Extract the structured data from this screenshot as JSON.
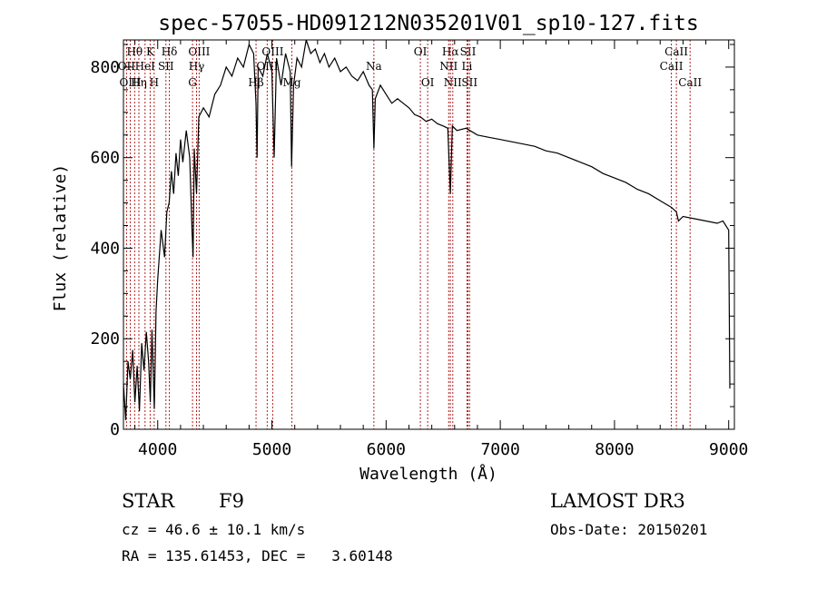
{
  "chart_data": {
    "type": "line",
    "title": "spec-57055-HD091212N035201V01_sp10-127.fits",
    "xlabel": "Wavelength (Å)",
    "ylabel": "Flux (relative)",
    "xlim": [
      3700,
      9050
    ],
    "ylim": [
      0,
      860
    ],
    "xticks": [
      4000,
      5000,
      6000,
      7000,
      8000,
      9000
    ],
    "yticks": [
      0,
      200,
      400,
      600,
      800
    ],
    "grid": false,
    "series": [
      {
        "name": "spectrum",
        "points": [
          [
            3700,
            100
          ],
          [
            3720,
            20
          ],
          [
            3740,
            150
          ],
          [
            3760,
            110
          ],
          [
            3780,
            175
          ],
          [
            3800,
            60
          ],
          [
            3820,
            140
          ],
          [
            3840,
            40
          ],
          [
            3860,
            190
          ],
          [
            3880,
            130
          ],
          [
            3900,
            215
          ],
          [
            3920,
            150
          ],
          [
            3935,
            60
          ],
          [
            3950,
            220
          ],
          [
            3970,
            45
          ],
          [
            3985,
            260
          ],
          [
            4000,
            330
          ],
          [
            4030,
            440
          ],
          [
            4060,
            380
          ],
          [
            4080,
            480
          ],
          [
            4100,
            500
          ],
          [
            4120,
            570
          ],
          [
            4140,
            520
          ],
          [
            4160,
            610
          ],
          [
            4180,
            560
          ],
          [
            4200,
            640
          ],
          [
            4220,
            590
          ],
          [
            4250,
            660
          ],
          [
            4280,
            600
          ],
          [
            4300,
            440
          ],
          [
            4310,
            380
          ],
          [
            4320,
            620
          ],
          [
            4340,
            520
          ],
          [
            4360,
            690
          ],
          [
            4400,
            710
          ],
          [
            4450,
            690
          ],
          [
            4500,
            740
          ],
          [
            4550,
            760
          ],
          [
            4600,
            800
          ],
          [
            4650,
            780
          ],
          [
            4700,
            820
          ],
          [
            4750,
            800
          ],
          [
            4800,
            850
          ],
          [
            4840,
            830
          ],
          [
            4861,
            720
          ],
          [
            4870,
            600
          ],
          [
            4880,
            800
          ],
          [
            4920,
            780
          ],
          [
            4960,
            830
          ],
          [
            5000,
            790
          ],
          [
            5020,
            600
          ],
          [
            5040,
            820
          ],
          [
            5080,
            760
          ],
          [
            5120,
            830
          ],
          [
            5160,
            790
          ],
          [
            5172,
            580
          ],
          [
            5190,
            760
          ],
          [
            5220,
            820
          ],
          [
            5260,
            800
          ],
          [
            5300,
            860
          ],
          [
            5340,
            830
          ],
          [
            5380,
            840
          ],
          [
            5420,
            810
          ],
          [
            5460,
            830
          ],
          [
            5500,
            800
          ],
          [
            5550,
            820
          ],
          [
            5600,
            790
          ],
          [
            5650,
            800
          ],
          [
            5700,
            780
          ],
          [
            5750,
            770
          ],
          [
            5800,
            790
          ],
          [
            5850,
            760
          ],
          [
            5880,
            750
          ],
          [
            5893,
            620
          ],
          [
            5905,
            730
          ],
          [
            5950,
            760
          ],
          [
            6000,
            740
          ],
          [
            6050,
            720
          ],
          [
            6100,
            730
          ],
          [
            6150,
            720
          ],
          [
            6200,
            710
          ],
          [
            6250,
            695
          ],
          [
            6300,
            690
          ],
          [
            6350,
            680
          ],
          [
            6400,
            685
          ],
          [
            6450,
            675
          ],
          [
            6500,
            670
          ],
          [
            6540,
            665
          ],
          [
            6563,
            520
          ],
          [
            6580,
            670
          ],
          [
            6620,
            660
          ],
          [
            6700,
            665
          ],
          [
            6800,
            650
          ],
          [
            6900,
            645
          ],
          [
            7000,
            640
          ],
          [
            7100,
            635
          ],
          [
            7200,
            630
          ],
          [
            7300,
            625
          ],
          [
            7400,
            615
          ],
          [
            7500,
            610
          ],
          [
            7600,
            600
          ],
          [
            7700,
            590
          ],
          [
            7800,
            580
          ],
          [
            7900,
            565
          ],
          [
            8000,
            555
          ],
          [
            8100,
            545
          ],
          [
            8200,
            530
          ],
          [
            8300,
            520
          ],
          [
            8400,
            505
          ],
          [
            8500,
            490
          ],
          [
            8542,
            480
          ],
          [
            8560,
            460
          ],
          [
            8600,
            470
          ],
          [
            8700,
            465
          ],
          [
            8800,
            460
          ],
          [
            8900,
            455
          ],
          [
            8950,
            460
          ],
          [
            9000,
            440
          ],
          [
            9010,
            90
          ]
        ]
      }
    ],
    "line_markers": [
      {
        "label": "Hθ",
        "wavelength": 3798,
        "row": 1
      },
      {
        "label": "OII",
        "wavelength": 3727,
        "row": 2
      },
      {
        "label": "OIII",
        "wavelength": 3760,
        "row": 3
      },
      {
        "label": "K",
        "wavelength": 3934,
        "row": 1
      },
      {
        "label": "HeI",
        "wavelength": 3889,
        "row": 2
      },
      {
        "label": "Hη",
        "wavelength": 3835,
        "row": 3
      },
      {
        "label": "Hδ",
        "wavelength": 4102,
        "row": 1
      },
      {
        "label": "SII",
        "wavelength": 4072,
        "row": 2
      },
      {
        "label": "H",
        "wavelength": 3969,
        "row": 3
      },
      {
        "label": "OIII",
        "wavelength": 4363,
        "row": 1
      },
      {
        "label": "Hγ",
        "wavelength": 4340,
        "row": 2
      },
      {
        "label": "G",
        "wavelength": 4305,
        "row": 3
      },
      {
        "label": "OIII",
        "wavelength": 5007,
        "row": 1
      },
      {
        "label": "OIII",
        "wavelength": 4959,
        "row": 2
      },
      {
        "label": "Hβ",
        "wavelength": 4861,
        "row": 3
      },
      {
        "label": "Mg",
        "wavelength": 5175,
        "row": 3
      },
      {
        "label": "Na",
        "wavelength": 5893,
        "row": 2
      },
      {
        "label": "OI",
        "wavelength": 6300,
        "row": 1
      },
      {
        "label": "OI",
        "wavelength": 6364,
        "row": 3
      },
      {
        "label": "Hα",
        "wavelength": 6563,
        "row": 1
      },
      {
        "label": "NII",
        "wavelength": 6548,
        "row": 2
      },
      {
        "label": "NII",
        "wavelength": 6584,
        "row": 3
      },
      {
        "label": "SII",
        "wavelength": 6717,
        "row": 1
      },
      {
        "label": "Li",
        "wavelength": 6708,
        "row": 2
      },
      {
        "label": "SII",
        "wavelength": 6731,
        "row": 3
      },
      {
        "label": "CaII",
        "wavelength": 8542,
        "row": 1
      },
      {
        "label": "CaII",
        "wavelength": 8498,
        "row": 2
      },
      {
        "label": "CaII",
        "wavelength": 8662,
        "row": 3
      }
    ]
  },
  "info": {
    "object_class": "STAR",
    "subclass": "F9",
    "survey": "LAMOST DR3",
    "cz_text": "cz = 46.6 ± 10.1 km/s",
    "obs_date_text": "Obs-Date: 20150201",
    "radec_text": "RA = 135.61453, DEC =   3.60148"
  },
  "colors": {
    "spectrum": "#000000",
    "line_marker": "#b22222",
    "axes": "#000000",
    "background": "#ffffff"
  }
}
